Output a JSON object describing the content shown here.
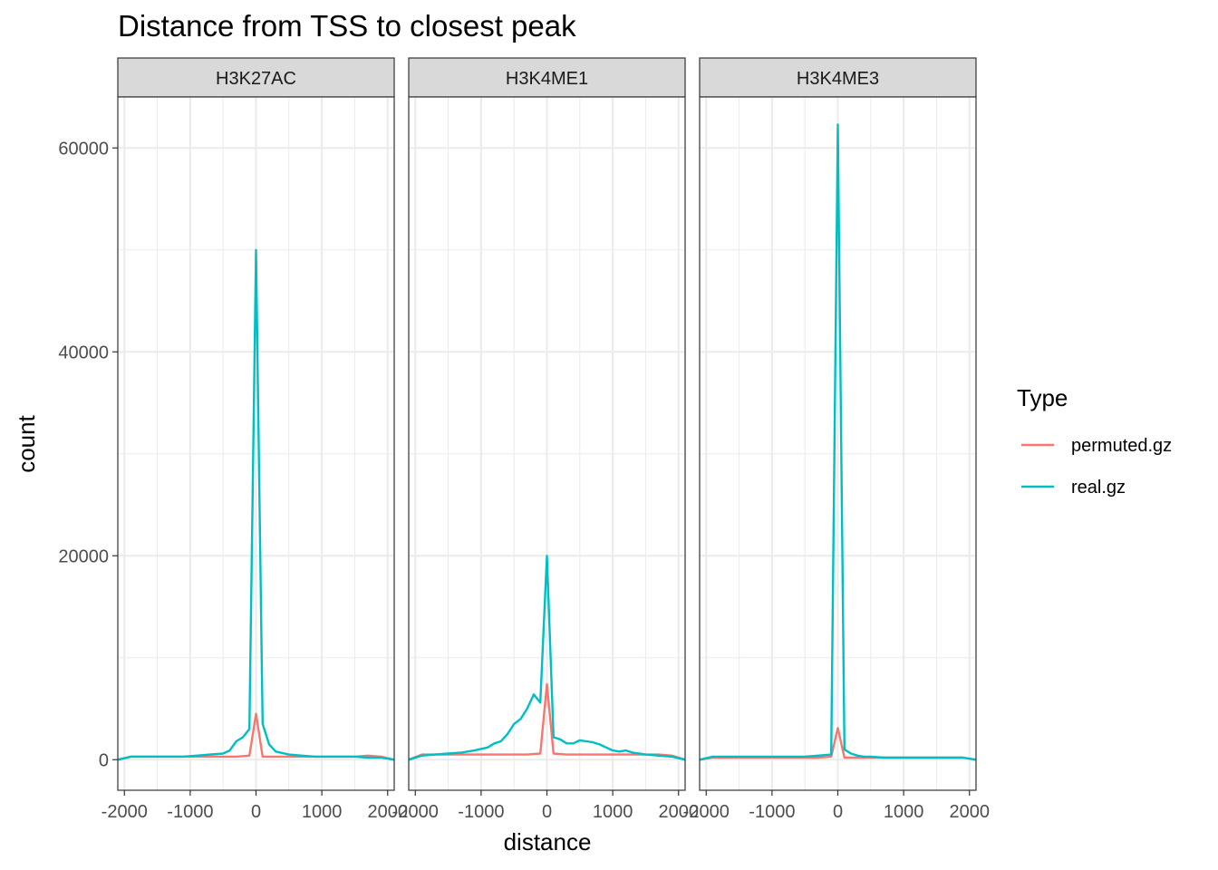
{
  "chart_data": {
    "type": "line",
    "title": "Distance from TSS to closest peak",
    "xlabel": "distance",
    "ylabel": "count",
    "xlim": [
      -2100,
      2100
    ],
    "ylim": [
      -3000,
      65000
    ],
    "xticks": [
      -2000,
      -1000,
      0,
      1000,
      2000
    ],
    "xtick_labels": [
      "-2000",
      "-1000",
      "0",
      "1000",
      "2000"
    ],
    "yticks": [
      0,
      20000,
      40000,
      60000
    ],
    "ytick_labels": [
      "0",
      "20000",
      "40000",
      "60000"
    ],
    "grid": true,
    "legend": {
      "title": "Type",
      "position": "right",
      "entries": [
        {
          "name": "permuted.gz",
          "color": "#F8766D"
        },
        {
          "name": "real.gz",
          "color": "#00BFC4"
        }
      ]
    },
    "panels": [
      {
        "name": "H3K27AC",
        "series": [
          {
            "name": "permuted.gz",
            "color": "#F8766D",
            "x": [
              -2100,
              -1900,
              -1700,
              -1500,
              -1300,
              -1100,
              -900,
              -700,
              -500,
              -300,
              -100,
              0,
              100,
              300,
              500,
              700,
              900,
              1100,
              1300,
              1500,
              1700,
              1900,
              2100
            ],
            "y": [
              0,
              300,
              300,
              300,
              300,
              300,
              300,
              300,
              300,
              300,
              400,
              4500,
              300,
              300,
              300,
              300,
              300,
              300,
              300,
              300,
              400,
              300,
              0
            ]
          },
          {
            "name": "real.gz",
            "color": "#00BFC4",
            "x": [
              -2100,
              -1900,
              -1700,
              -1500,
              -1300,
              -1100,
              -900,
              -700,
              -500,
              -400,
              -300,
              -200,
              -100,
              0,
              100,
              200,
              300,
              500,
              700,
              900,
              1100,
              1300,
              1500,
              1700,
              1900,
              2100
            ],
            "y": [
              0,
              300,
              300,
              300,
              300,
              300,
              400,
              500,
              600,
              900,
              1800,
              2200,
              3000,
              50000,
              3500,
              1500,
              800,
              500,
              400,
              300,
              300,
              300,
              300,
              200,
              200,
              0
            ]
          }
        ]
      },
      {
        "name": "H3K4ME1",
        "series": [
          {
            "name": "permuted.gz",
            "color": "#F8766D",
            "x": [
              -2100,
              -1900,
              -1700,
              -1500,
              -1300,
              -1100,
              -900,
              -700,
              -500,
              -300,
              -100,
              0,
              100,
              300,
              500,
              700,
              900,
              1100,
              1300,
              1500,
              1700,
              1900,
              2100
            ],
            "y": [
              0,
              500,
              500,
              500,
              500,
              500,
              500,
              500,
              500,
              500,
              600,
              7400,
              600,
              500,
              500,
              500,
              500,
              500,
              500,
              500,
              500,
              400,
              0
            ]
          },
          {
            "name": "real.gz",
            "color": "#00BFC4",
            "x": [
              -2100,
              -1900,
              -1700,
              -1500,
              -1300,
              -1100,
              -900,
              -800,
              -700,
              -600,
              -500,
              -400,
              -300,
              -200,
              -100,
              0,
              100,
              200,
              300,
              400,
              500,
              600,
              700,
              800,
              900,
              1000,
              1100,
              1200,
              1300,
              1500,
              1700,
              1900,
              2100
            ],
            "y": [
              0,
              400,
              500,
              600,
              700,
              900,
              1200,
              1600,
              1800,
              2500,
              3500,
              4000,
              5000,
              6400,
              5600,
              20000,
              2200,
              2000,
              1600,
              1600,
              1900,
              1800,
              1700,
              1500,
              1200,
              900,
              800,
              900,
              700,
              500,
              400,
              300,
              0
            ]
          }
        ]
      },
      {
        "name": "H3K4ME3",
        "series": [
          {
            "name": "permuted.gz",
            "color": "#F8766D",
            "x": [
              -2100,
              -1900,
              -1700,
              -1500,
              -1300,
              -1100,
              -900,
              -700,
              -500,
              -300,
              -100,
              0,
              100,
              300,
              500,
              700,
              900,
              1100,
              1300,
              1500,
              1700,
              1900,
              2100
            ],
            "y": [
              0,
              200,
              200,
              200,
              200,
              200,
              200,
              200,
              200,
              200,
              300,
              3100,
              200,
              200,
              200,
              200,
              200,
              200,
              200,
              200,
              200,
              200,
              0
            ]
          },
          {
            "name": "real.gz",
            "color": "#00BFC4",
            "x": [
              -2100,
              -1900,
              -1700,
              -1500,
              -1300,
              -1100,
              -900,
              -700,
              -500,
              -300,
              -100,
              0,
              100,
              200,
              300,
              400,
              500,
              700,
              900,
              1100,
              1300,
              1500,
              1700,
              1900,
              2100
            ],
            "y": [
              0,
              300,
              300,
              300,
              300,
              300,
              300,
              300,
              300,
              400,
              500,
              62300,
              1000,
              600,
              400,
              300,
              300,
              200,
              200,
              200,
              200,
              200,
              200,
              200,
              0
            ]
          }
        ]
      }
    ]
  }
}
